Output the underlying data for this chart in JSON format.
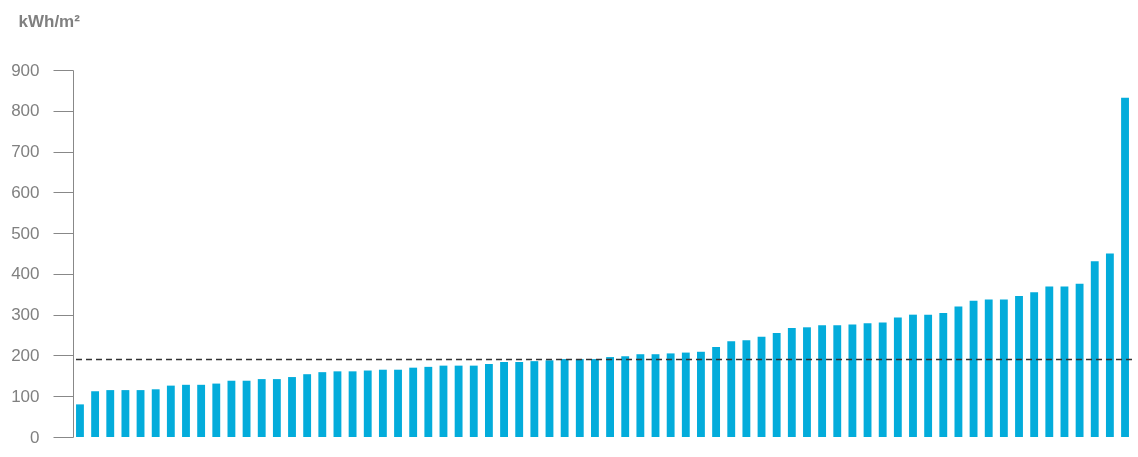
{
  "chart_data": {
    "type": "bar",
    "ylabel": "kWh/m²",
    "categories": [
      null,
      null,
      null,
      null,
      null,
      null,
      null,
      null,
      null,
      null,
      null,
      null,
      null,
      null,
      null,
      null,
      null,
      null,
      null,
      null,
      null,
      null,
      null,
      null,
      null,
      null,
      null,
      null,
      null,
      null,
      null,
      null,
      null,
      null,
      null,
      null,
      null,
      null,
      null,
      null,
      null,
      null,
      null,
      null,
      null,
      null,
      null,
      null,
      null,
      null,
      null,
      null,
      null,
      null,
      null,
      null,
      null,
      null,
      null,
      null,
      null,
      null,
      null,
      null,
      null,
      null,
      null,
      null,
      null,
      null
    ],
    "series": [
      {
        "color": "#03acdb",
        "values": [
          80,
          112,
          115,
          115,
          115,
          117,
          126,
          128,
          128,
          131,
          138,
          138,
          142,
          142,
          147,
          154,
          159,
          161,
          161,
          163,
          165,
          165,
          170,
          172,
          175,
          175,
          175,
          179,
          184,
          184,
          186,
          188,
          191,
          191,
          191,
          196,
          198,
          203,
          203,
          205,
          207,
          209,
          221,
          235,
          237,
          246,
          255,
          267,
          269,
          274,
          274,
          276,
          279,
          281,
          293,
          300,
          300,
          304,
          320,
          334,
          337,
          337,
          346,
          355,
          369,
          369,
          376,
          431,
          450,
          832
        ]
      }
    ],
    "ylim": [
      0,
      900
    ],
    "yticks": [
      0,
      100,
      200,
      300,
      400,
      500,
      600,
      700,
      800,
      900
    ],
    "ref_lines": [
      {
        "axis": "y",
        "value": 190,
        "color": "#333333",
        "line_style": "dashed"
      }
    ],
    "tick_labels": "y",
    "grid": false
  }
}
